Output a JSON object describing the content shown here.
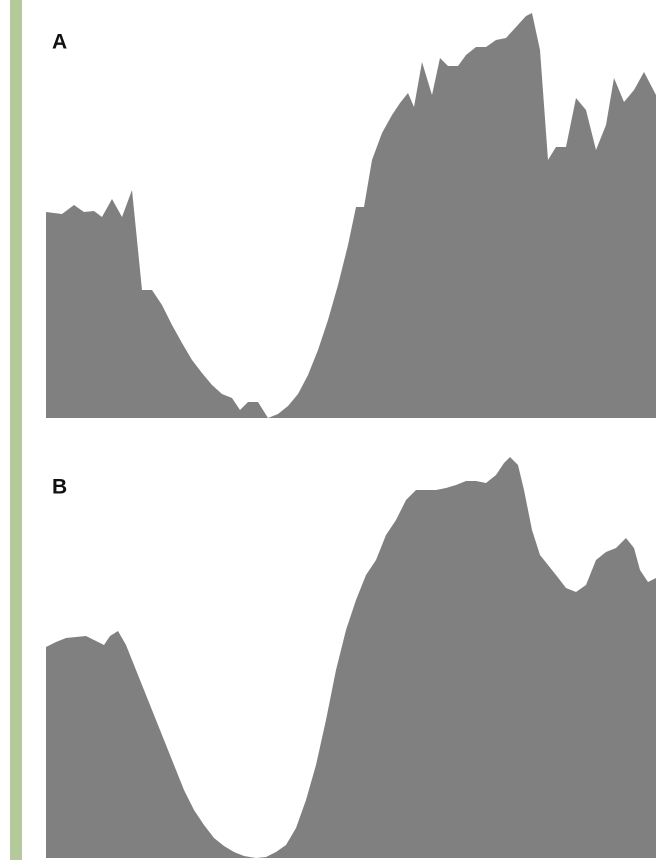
{
  "chart_data": [
    {
      "type": "area",
      "title": "A",
      "color": "#808080",
      "xlim": [
        0,
        610
      ],
      "ylim": [
        0,
        408
      ],
      "x": [
        0,
        16,
        28,
        38,
        48,
        56,
        66,
        76,
        86,
        96,
        106,
        116,
        126,
        136,
        146,
        156,
        166,
        176,
        186,
        194,
        202,
        212,
        222,
        232,
        242,
        252,
        262,
        272,
        282,
        292,
        302,
        310,
        318,
        326,
        336,
        346,
        354,
        362,
        368,
        376,
        386,
        394,
        402,
        412,
        420,
        430,
        440,
        450,
        460,
        470,
        480,
        486,
        494,
        502,
        510,
        520,
        530,
        540,
        550,
        560,
        568,
        578,
        588,
        598,
        610
      ],
      "values": [
        206,
        204,
        213,
        206,
        207,
        201,
        219,
        201,
        228,
        128,
        128,
        113,
        93,
        75,
        58,
        45,
        33,
        24,
        20,
        8,
        16,
        16,
        0,
        4,
        12,
        24,
        43,
        68,
        98,
        133,
        173,
        211,
        211,
        258,
        285,
        303,
        315,
        325,
        311,
        356,
        323,
        360,
        352,
        352,
        363,
        371,
        371,
        378,
        380,
        391,
        402,
        405,
        368,
        258,
        271,
        271,
        320,
        308,
        268,
        293,
        340,
        316,
        328,
        346,
        323
      ]
    },
    {
      "type": "area",
      "title": "B",
      "color": "#808080",
      "xlim": [
        0,
        610
      ],
      "ylim": [
        0,
        403
      ],
      "x": [
        0,
        10,
        20,
        30,
        40,
        50,
        58,
        64,
        72,
        80,
        88,
        98,
        108,
        118,
        128,
        138,
        148,
        158,
        168,
        178,
        188,
        198,
        210,
        220,
        230,
        240,
        250,
        260,
        270,
        280,
        290,
        300,
        310,
        320,
        330,
        340,
        350,
        360,
        370,
        380,
        390,
        400,
        410,
        420,
        430,
        440,
        450,
        458,
        464,
        472,
        478,
        486,
        494,
        502,
        510,
        520,
        530,
        540,
        550,
        560,
        570,
        580,
        588,
        594,
        602,
        610
      ],
      "values": [
        211,
        216,
        220,
        221,
        222,
        217,
        213,
        222,
        227,
        213,
        193,
        168,
        143,
        118,
        93,
        68,
        48,
        33,
        20,
        12,
        6,
        2,
        0,
        1,
        6,
        13,
        30,
        58,
        93,
        138,
        188,
        228,
        258,
        283,
        298,
        323,
        338,
        358,
        368,
        368,
        368,
        370,
        373,
        377,
        377,
        375,
        383,
        395,
        401,
        393,
        368,
        328,
        303,
        293,
        283,
        270,
        266,
        273,
        298,
        306,
        310,
        320,
        310,
        288,
        276,
        280
      ]
    }
  ]
}
